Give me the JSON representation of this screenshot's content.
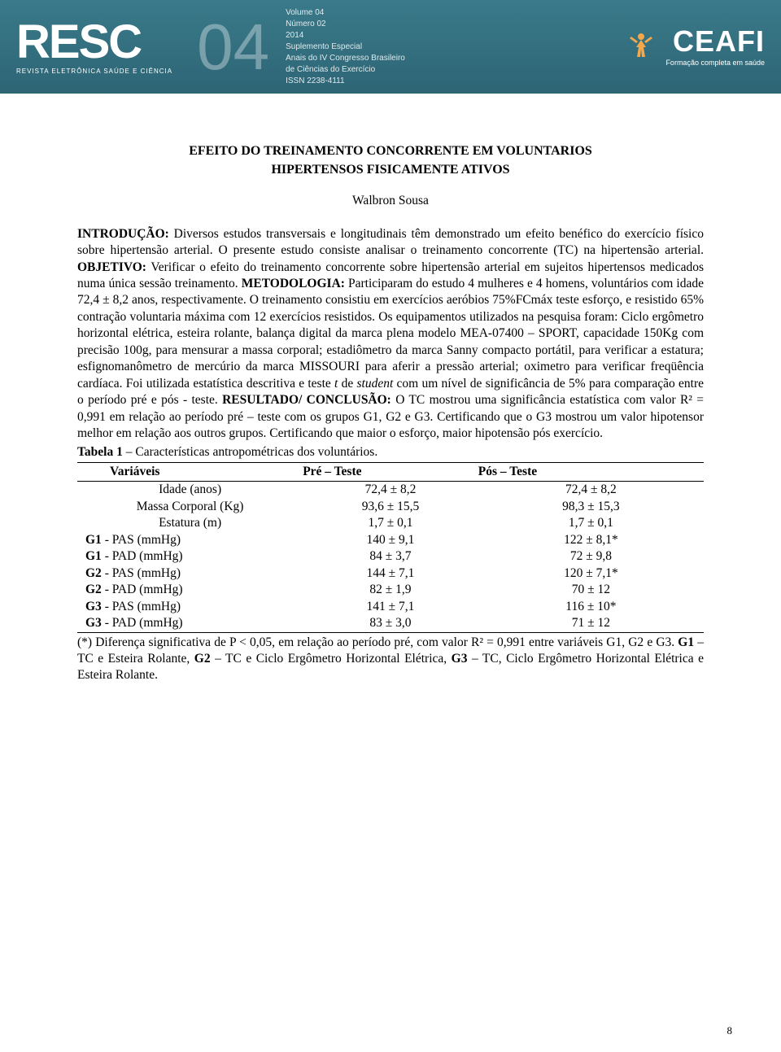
{
  "header": {
    "logo": "RESC",
    "logo_sub": "REVISTA ELETRÔNICA SAÚDE E CIÊNCIA",
    "volume_big": "04",
    "meta_lines": [
      "Volume 04",
      "Número 02",
      "2014",
      "Suplemento Especial",
      "Anais do IV Congresso Brasileiro",
      "de Ciências do Exercício",
      "ISSN 2238-4111"
    ],
    "ceafi": "CEAFI",
    "ceafi_sub": "Formação completa em saúde"
  },
  "article": {
    "title_line1": "EFEITO DO TREINAMENTO CONCORRENTE EM VOLUNTARIOS",
    "title_line2": "HIPERTENSOS FISICAMENTE ATIVOS",
    "author": "Walbron Sousa",
    "abstract_html": "<b>INTRODUÇÃO:</b> Diversos estudos transversais e longitudinais têm demonstrado um efeito benéfico do exercício físico sobre hipertensão arterial. O presente estudo consiste analisar o treinamento concorrente (TC) na hipertensão arterial. <b>OBJETIVO:</b> Verificar o efeito do treinamento concorrente sobre hipertensão arterial em sujeitos hipertensos medicados numa única sessão treinamento. <b>METODOLOGIA:</b> Participaram do estudo 4 mulheres e 4 homens, voluntários com idade 72,4 ± 8,2 anos, respectivamente. O treinamento consistiu em exercícios aeróbios 75%FCmáx teste esforço, e resistido 65% contração voluntaria máxima com 12 exercícios resistidos. Os equipamentos utilizados na pesquisa foram: Ciclo ergômetro horizontal elétrica, esteira rolante, balança digital da marca plena modelo MEA-07400 – SPORT, capacidade 150Kg com precisão 100g, para mensurar a massa corporal; estadiômetro da marca Sanny compacto portátil, para verificar a estatura; esfignomanômetro de mercúrio da marca MISSOURI para aferir a pressão arterial; oximetro para verificar freqüência cardíaca. Foi utilizada estatística descritiva e teste <i>t</i> de <i>student</i> com um nível de significância de 5% para comparação entre o período pré e pós - teste. <b>RESULTADO/ CONCLUSÃO:</b> O TC mostrou uma significância estatística com valor R² = 0,991 em relação ao período pré – teste com os grupos G1, G2 e G3. Certificando que o G3 mostrou um valor hipotensor melhor em relação aos outros grupos. Certificando que maior o esforço, maior hipotensão pós exercício."
  },
  "table": {
    "caption_bold": "Tabela 1",
    "caption_rest": " – Características antropométricas dos voluntários.",
    "columns": [
      "Variáveis",
      "Pré – Teste",
      "Pós – Teste"
    ],
    "rows": [
      {
        "var": "Idade (anos)",
        "pre": "72,4 ± 8,2",
        "pos": "72,4 ± 8,2",
        "bold_prefix": ""
      },
      {
        "var": "Massa Corporal (Kg)",
        "pre": "93,6 ± 15,5",
        "pos": "98,3 ± 15,3",
        "bold_prefix": ""
      },
      {
        "var": "Estatura (m)",
        "pre": "1,7 ± 0,1",
        "pos": "1,7 ± 0,1",
        "bold_prefix": ""
      },
      {
        "var": " - PAS (mmHg)",
        "pre": "140 ± 9,1",
        "pos": "122 ± 8,1*",
        "bold_prefix": "G1"
      },
      {
        "var": " - PAD (mmHg)",
        "pre": "84 ± 3,7",
        "pos": "72 ± 9,8",
        "bold_prefix": "G1"
      },
      {
        "var": " - PAS (mmHg)",
        "pre": "144 ± 7,1",
        "pos": "120 ± 7,1*",
        "bold_prefix": "G2"
      },
      {
        "var": " - PAD (mmHg)",
        "pre": "82 ± 1,9",
        "pos": "70 ± 12",
        "bold_prefix": "G2"
      },
      {
        "var": " - PAS (mmHg)",
        "pre": "141 ± 7,1",
        "pos": "116 ± 10*",
        "bold_prefix": "G3"
      },
      {
        "var": " - PAD (mmHg)",
        "pre": "83 ± 3,0",
        "pos": "71 ± 12",
        "bold_prefix": "G3"
      }
    ],
    "footnote_html": "(*) Diferença significativa de P < 0,05, em relação ao período pré, com valor R² = 0,991 entre variáveis G1, G2 e G3. <b>G1</b> – TC e Esteira Rolante, <b>G2</b> – TC e Ciclo Ergômetro Horizontal Elétrica, <b>G3</b> – TC, Ciclo Ergômetro Horizontal Elétrica e Esteira Rolante."
  },
  "page_number": "8",
  "styling": {
    "body_bg": "#ffffff",
    "text_color": "#000000",
    "header_gradient_top": "#3a7a8a",
    "header_gradient_bottom": "#2d6575",
    "header_text": "#ffffff",
    "font_body": "Times New Roman",
    "font_header": "Arial",
    "body_fontsize_pt": 12,
    "title_fontsize_pt": 12,
    "line_height": 1.32,
    "table_border_color": "#000000",
    "ceafi_icon_color": "#f4a84b"
  }
}
